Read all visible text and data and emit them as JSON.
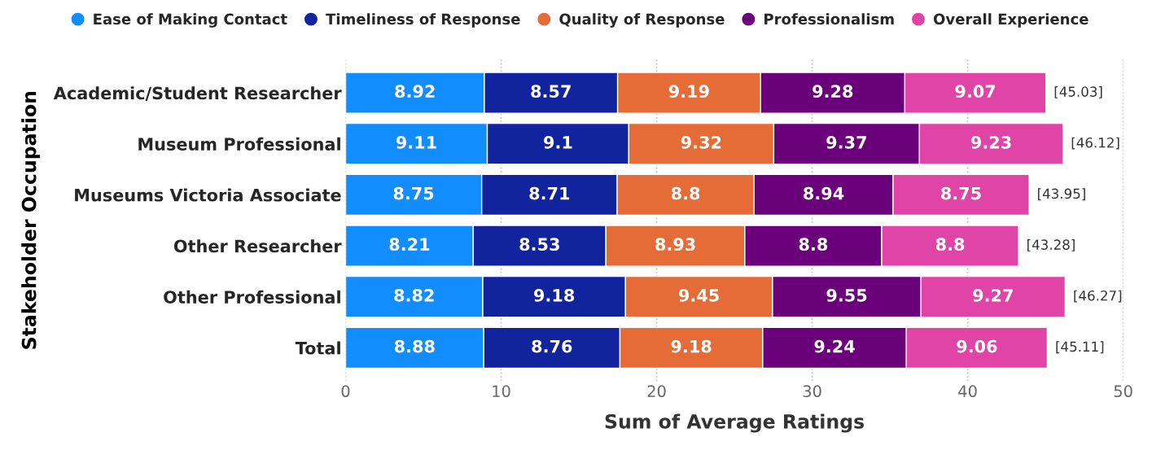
{
  "chart_data": {
    "type": "bar",
    "orientation": "horizontal",
    "stacked": true,
    "categories": [
      "Academic/Student Researcher",
      "Museum Professional",
      "Museums Victoria Associate",
      "Other Researcher",
      "Other Professional",
      "Total"
    ],
    "series": [
      {
        "name": "Ease of Making Contact",
        "color": "#118dff",
        "values": [
          8.92,
          9.11,
          8.75,
          8.21,
          8.82,
          8.88
        ]
      },
      {
        "name": "Timeliness of Response",
        "color": "#12239e",
        "values": [
          8.57,
          9.1,
          8.71,
          8.53,
          9.18,
          8.76
        ]
      },
      {
        "name": "Quality of Response",
        "color": "#e66c37",
        "values": [
          9.19,
          9.32,
          8.8,
          8.93,
          9.45,
          9.18
        ]
      },
      {
        "name": "Professionalism",
        "color": "#6b007b",
        "values": [
          9.28,
          9.37,
          8.94,
          8.8,
          9.55,
          9.24
        ]
      },
      {
        "name": "Overall Experience",
        "color": "#e044a7",
        "values": [
          9.07,
          9.23,
          8.75,
          8.8,
          9.27,
          9.06
        ]
      }
    ],
    "totals": [
      "[45.03]",
      "[46.12]",
      "[43.95]",
      "[43.28]",
      "[46.27]",
      "[45.11]"
    ],
    "data_labels": true,
    "xlabel": "Sum of Average Ratings",
    "ylabel": "Stakeholder Occupation",
    "xlim": [
      0,
      50
    ],
    "xticks": [
      0,
      10,
      20,
      30,
      40,
      50
    ],
    "grid": "x",
    "legend": "top",
    "marker": "circle"
  }
}
